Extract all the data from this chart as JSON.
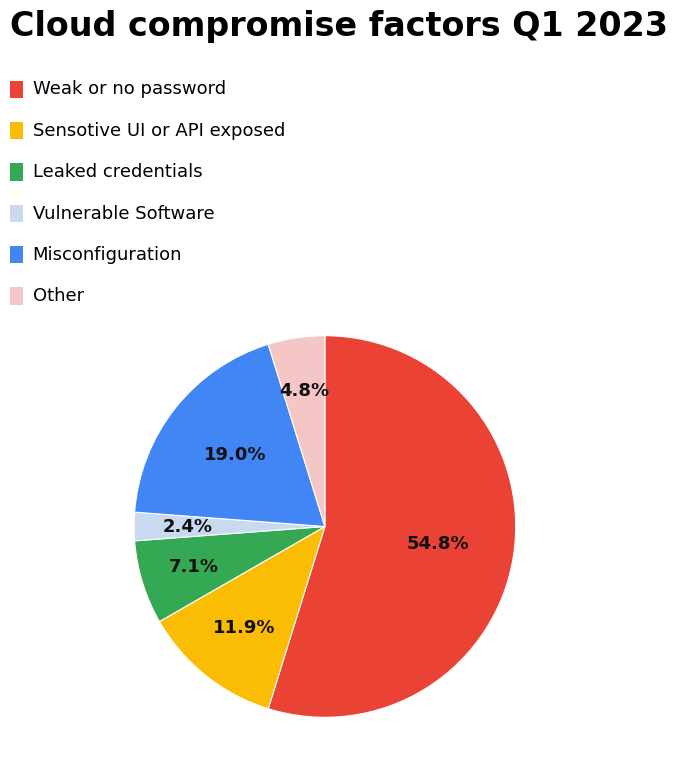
{
  "title": "Cloud compromise factors Q1 2023",
  "slices": [
    {
      "label": "Weak or no password",
      "value": 54.8,
      "color": "#EA4335",
      "pct": "54.8%"
    },
    {
      "label": "Sensotive UI or API exposed",
      "value": 11.9,
      "color": "#FBBC04",
      "pct": "11.9%"
    },
    {
      "label": "Leaked credentials",
      "value": 7.1,
      "color": "#34A853",
      "pct": "7.1%"
    },
    {
      "label": "Vulnerable Software",
      "value": 2.4,
      "color": "#C8D9F0",
      "pct": "2.4%"
    },
    {
      "label": "Misconfiguration",
      "value": 19.0,
      "color": "#4285F4",
      "pct": "19.0%"
    },
    {
      "label": "Other",
      "value": 4.8,
      "color": "#F5C6C6",
      "pct": "4.8%"
    }
  ],
  "title_fontsize": 24,
  "legend_fontsize": 13,
  "label_fontsize": 13,
  "background_color": "#ffffff",
  "startangle": 90,
  "pct_label_color": "#111111"
}
